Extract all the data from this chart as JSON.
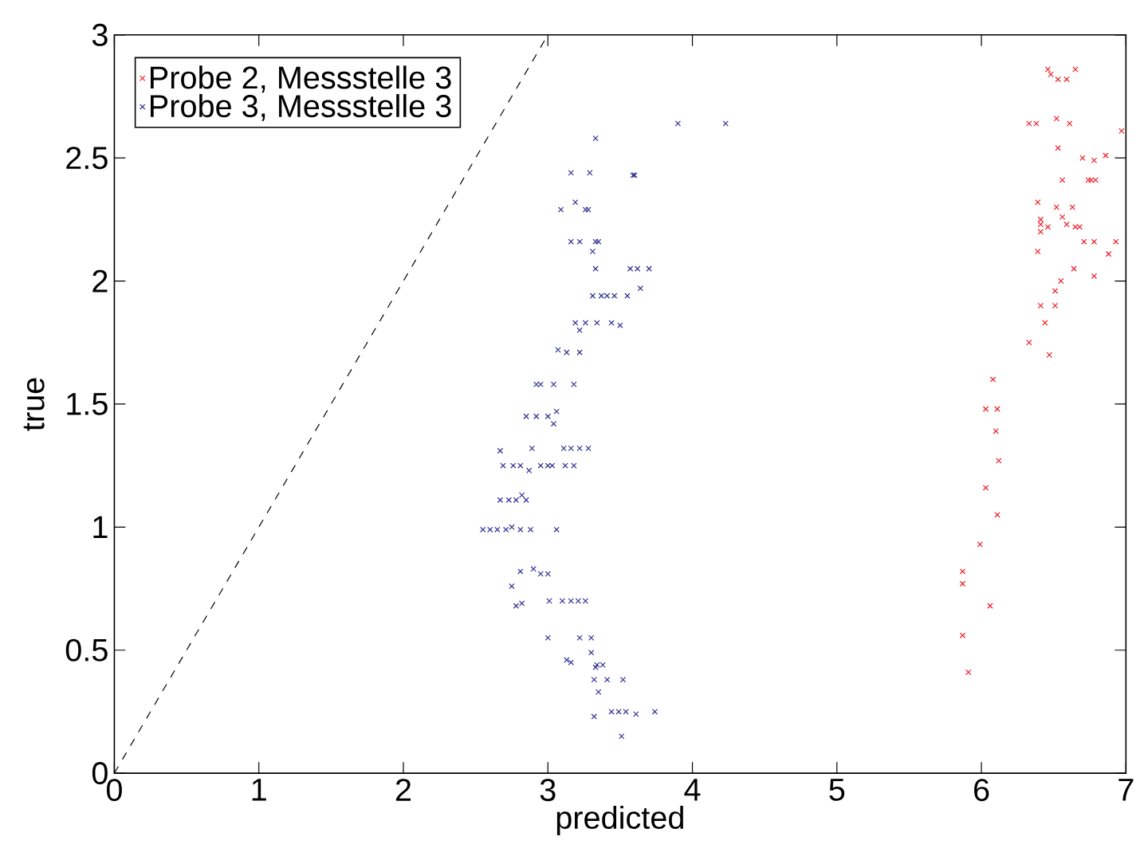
{
  "chart_data": {
    "type": "scatter",
    "xlabel": "predicted",
    "ylabel": "true",
    "xlim": [
      0,
      7
    ],
    "ylim": [
      0,
      3
    ],
    "xticks": [
      0,
      1,
      2,
      3,
      4,
      5,
      6,
      7
    ],
    "yticks": [
      0,
      0.5,
      1,
      1.5,
      2,
      2.5,
      3
    ],
    "legend": "top left",
    "grid": false,
    "marker": "cross",
    "series": [
      {
        "name": "Probe 2, Messstelle 3",
        "color": "#ee1c25",
        "x": [
          6.46,
          6.48,
          6.53,
          6.59,
          6.65,
          6.33,
          6.38,
          6.52,
          6.61,
          6.97,
          6.53,
          6.7,
          6.78,
          6.86,
          6.56,
          6.74,
          6.76,
          6.79,
          6.39,
          6.52,
          6.63,
          6.56,
          6.41,
          6.41,
          6.46,
          6.59,
          6.65,
          6.68,
          6.41,
          6.71,
          6.78,
          6.93,
          6.39,
          6.88,
          6.64,
          6.78,
          6.55,
          6.51,
          6.41,
          6.51,
          6.44,
          6.33,
          6.47,
          6.08,
          6.03,
          6.11,
          6.1,
          6.12,
          6.03,
          6.11,
          5.99,
          5.87,
          5.87,
          6.06,
          5.87,
          5.91
        ],
        "values": [
          2.86,
          2.84,
          2.82,
          2.82,
          2.86,
          2.64,
          2.64,
          2.66,
          2.64,
          2.61,
          2.54,
          2.5,
          2.49,
          2.51,
          2.41,
          2.41,
          2.41,
          2.41,
          2.32,
          2.3,
          2.3,
          2.26,
          2.25,
          2.23,
          2.22,
          2.23,
          2.22,
          2.22,
          2.2,
          2.16,
          2.16,
          2.16,
          2.12,
          2.11,
          2.05,
          2.02,
          2.0,
          1.96,
          1.9,
          1.9,
          1.83,
          1.75,
          1.7,
          1.6,
          1.48,
          1.48,
          1.39,
          1.27,
          1.16,
          1.05,
          0.93,
          0.82,
          0.77,
          0.68,
          0.56,
          0.41
        ]
      },
      {
        "name": "Probe 3, Messstelle 3",
        "color": "#2e3192",
        "x": [
          3.9,
          4.23,
          3.33,
          3.16,
          3.29,
          3.59,
          3.6,
          3.09,
          3.19,
          3.26,
          3.28,
          3.16,
          3.22,
          3.33,
          3.35,
          3.31,
          3.33,
          3.57,
          3.62,
          3.7,
          3.64,
          3.31,
          3.37,
          3.41,
          3.46,
          3.55,
          3.19,
          3.26,
          3.22,
          3.34,
          3.44,
          3.5,
          3.07,
          3.13,
          3.22,
          2.92,
          2.95,
          3.04,
          3.18,
          2.85,
          2.92,
          3.0,
          3.06,
          3.04,
          2.67,
          2.89,
          3.11,
          3.16,
          3.22,
          3.28,
          2.69,
          2.76,
          2.81,
          2.87,
          2.95,
          3.0,
          3.03,
          3.12,
          3.18,
          2.67,
          2.73,
          2.78,
          2.82,
          2.85,
          2.55,
          2.6,
          2.65,
          2.71,
          2.75,
          2.81,
          2.88,
          3.06,
          2.81,
          2.9,
          2.95,
          3.0,
          2.75,
          2.78,
          2.82,
          3.01,
          3.1,
          3.16,
          3.21,
          3.26,
          3.0,
          3.22,
          3.3,
          3.3,
          3.13,
          3.16,
          3.34,
          3.38,
          3.33,
          3.32,
          3.41,
          3.52,
          3.35,
          3.32,
          3.44,
          3.49,
          3.54,
          3.61,
          3.74,
          3.51
        ],
        "values": [
          2.64,
          2.64,
          2.58,
          2.44,
          2.44,
          2.43,
          2.43,
          2.29,
          2.32,
          2.29,
          2.29,
          2.16,
          2.16,
          2.16,
          2.16,
          2.12,
          2.05,
          2.05,
          2.05,
          2.05,
          1.97,
          1.94,
          1.94,
          1.94,
          1.94,
          1.94,
          1.83,
          1.83,
          1.8,
          1.83,
          1.83,
          1.82,
          1.72,
          1.71,
          1.71,
          1.58,
          1.58,
          1.58,
          1.58,
          1.45,
          1.45,
          1.45,
          1.47,
          1.42,
          1.31,
          1.32,
          1.32,
          1.32,
          1.32,
          1.32,
          1.25,
          1.25,
          1.25,
          1.23,
          1.25,
          1.25,
          1.25,
          1.25,
          1.25,
          1.11,
          1.11,
          1.11,
          1.13,
          1.11,
          0.99,
          0.99,
          0.99,
          0.99,
          1.0,
          0.99,
          0.99,
          0.99,
          0.82,
          0.83,
          0.81,
          0.81,
          0.76,
          0.68,
          0.69,
          0.7,
          0.7,
          0.7,
          0.7,
          0.7,
          0.55,
          0.55,
          0.55,
          0.49,
          0.46,
          0.45,
          0.44,
          0.44,
          0.43,
          0.38,
          0.38,
          0.38,
          0.33,
          0.23,
          0.25,
          0.25,
          0.25,
          0.24,
          0.25,
          0.15
        ]
      },
      {
        "color": "#000000",
        "type": "line",
        "line_style": "dashed",
        "marker": "none",
        "x": [
          0,
          3
        ],
        "values": [
          0,
          3
        ]
      }
    ]
  }
}
